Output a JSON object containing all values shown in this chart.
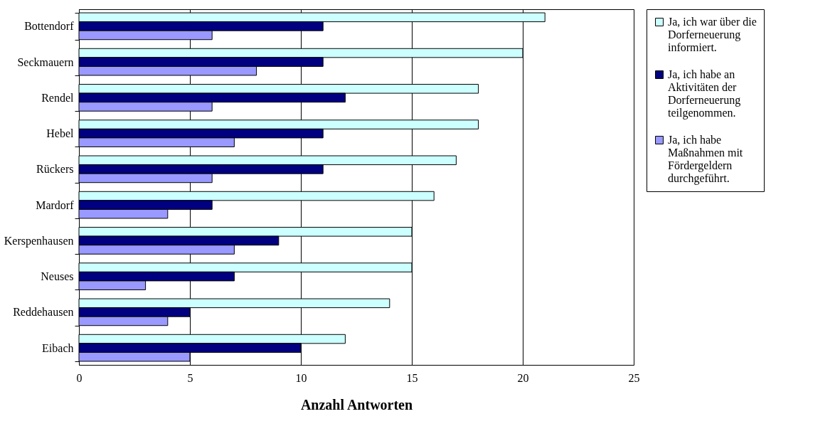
{
  "chart_data": {
    "type": "bar",
    "orientation": "horizontal",
    "xlabel": "Anzahl Antworten",
    "categories": [
      "Bottendorf",
      "Seckmauern",
      "Rendel",
      "Hebel",
      "Rückers",
      "Mardorf",
      "Kerspenhausen",
      "Neuses",
      "Reddehausen",
      "Eibach"
    ],
    "series": [
      {
        "name": "Ja, ich war über die Dorferneuerung informiert.",
        "color": "#ccffff",
        "values": [
          21,
          20,
          18,
          18,
          17,
          16,
          15,
          15,
          14,
          12
        ]
      },
      {
        "name": "Ja, ich habe an Aktivitäten der Dorferneuerung teilgenommen.",
        "color": "#000080",
        "values": [
          11,
          11,
          12,
          11,
          11,
          6,
          9,
          7,
          5,
          10
        ]
      },
      {
        "name": "Ja, ich habe Maßnahmen mit Fördergeldern durchgeführt.",
        "color": "#9999ff",
        "values": [
          6,
          8,
          6,
          7,
          6,
          4,
          7,
          3,
          4,
          5
        ]
      }
    ],
    "xlim": [
      0,
      25
    ],
    "xticks": [
      0,
      5,
      10,
      15,
      20,
      25
    ],
    "grid": "x",
    "legend": "right"
  }
}
